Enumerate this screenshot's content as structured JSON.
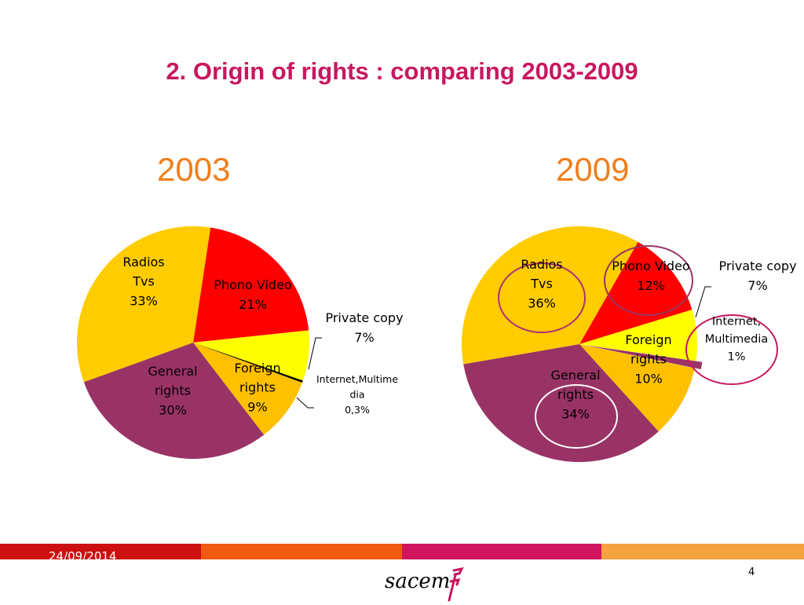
{
  "slide": {
    "title": "2.  Origin of rights : comparing 2003-2009",
    "date": "24/09/2014",
    "page_number": "4",
    "logo_text": "sacem",
    "logo_mark": "F"
  },
  "colors": {
    "title": "#c8175f",
    "year": "#f07e1b",
    "footer_bands": [
      "#cc1010",
      "#f05a12",
      "#d0155e",
      "#f5a23f"
    ]
  },
  "chart_data": [
    {
      "type": "pie",
      "title": "2003",
      "slices": [
        {
          "label": "Phono Video",
          "value": 21,
          "value_label": "21%",
          "color": "#ff0000"
        },
        {
          "label": "Private copy",
          "value": 7,
          "value_label": "7%",
          "color": "#ffff00"
        },
        {
          "label": "Internet,Multimedia",
          "value": 0.3,
          "value_label": "0,3%",
          "color": "#000000"
        },
        {
          "label": "Foreign rights",
          "value": 9,
          "value_label": "9%",
          "color": "#ffc000"
        },
        {
          "label": "General rights",
          "value": 30,
          "value_label": "30%",
          "color": "#993366"
        },
        {
          "label": "Radios Tvs",
          "value": 33,
          "value_label": "33%",
          "color": "#ffcc00"
        }
      ],
      "label_lines": [
        [
          "Phono Video",
          "21%"
        ],
        [
          "Private copy",
          "7%"
        ],
        [
          "Internet,Multime",
          "dia",
          "0,3%"
        ],
        [
          "Foreign",
          "rights",
          "9%"
        ],
        [
          "General",
          "rights",
          "30%"
        ],
        [
          "Radios",
          "Tvs",
          "33%"
        ]
      ]
    },
    {
      "type": "pie",
      "title": "2009",
      "slices": [
        {
          "label": "Phono Video",
          "value": 12,
          "value_label": "12%",
          "color": "#ff0000"
        },
        {
          "label": "Private copy",
          "value": 7,
          "value_label": "7%",
          "color": "#ffff00"
        },
        {
          "label": "Internet, Multimedia",
          "value": 1,
          "value_label": "1%",
          "color": "#993366"
        },
        {
          "label": "Foreign rights",
          "value": 10,
          "value_label": "10%",
          "color": "#ffc000"
        },
        {
          "label": "General rights",
          "value": 34,
          "value_label": "34%",
          "color": "#993366"
        },
        {
          "label": "Radios Tvs",
          "value": 36,
          "value_label": "36%",
          "color": "#ffcc00"
        }
      ],
      "label_lines": [
        [
          "Phono Video",
          "12%"
        ],
        [
          "Private copy",
          "7%"
        ],
        [
          "Internet,",
          "Multimedia",
          "1%"
        ],
        [
          "Foreign",
          "rights",
          "10%"
        ],
        [
          "General",
          "rights",
          "34%"
        ],
        [
          "Radios",
          "Tvs",
          "36%"
        ]
      ],
      "highlighted": [
        "Phono Video",
        "Internet, Multimedia",
        "Radios Tvs",
        "General rights"
      ]
    }
  ]
}
